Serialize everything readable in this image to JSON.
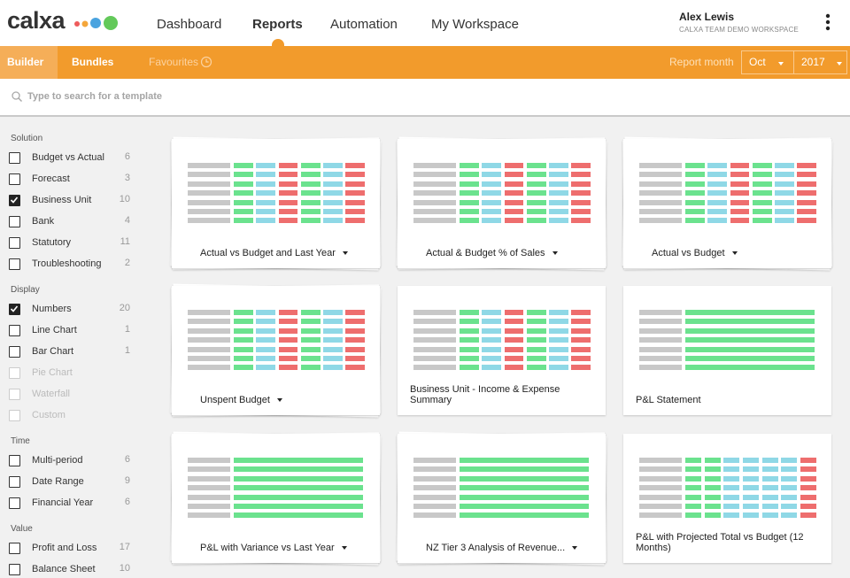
{
  "header": {
    "logo": "calxa",
    "nav": [
      {
        "label": "Dashboard",
        "active": false
      },
      {
        "label": "Reports",
        "active": true
      },
      {
        "label": "Automation",
        "active": false
      },
      {
        "label": "My Workspace",
        "active": false
      }
    ],
    "user": {
      "name": "Alex Lewis",
      "workspace": "CALXA TEAM DEMO WORKSPACE"
    }
  },
  "toolbar": {
    "tabs": [
      {
        "label": "Builder",
        "active": true,
        "faded": false
      },
      {
        "label": "Bundles",
        "active": false,
        "faded": false
      },
      {
        "label": "Favourites",
        "active": false,
        "faded": true
      }
    ],
    "report_month_label": "Report month",
    "month": "Oct",
    "year": "2017"
  },
  "search": {
    "placeholder": "Type to search for a template"
  },
  "filters": [
    {
      "title": "Solution",
      "items": [
        {
          "label": "Budget vs Actual",
          "count": 6,
          "checked": false,
          "disabled": false
        },
        {
          "label": "Forecast",
          "count": 3,
          "checked": false,
          "disabled": false
        },
        {
          "label": "Business Unit",
          "count": 10,
          "checked": true,
          "disabled": false
        },
        {
          "label": "Bank",
          "count": 4,
          "checked": false,
          "disabled": false
        },
        {
          "label": "Statutory",
          "count": 11,
          "checked": false,
          "disabled": false
        },
        {
          "label": "Troubleshooting",
          "count": 2,
          "checked": false,
          "disabled": false
        }
      ]
    },
    {
      "title": "Display",
      "items": [
        {
          "label": "Numbers",
          "count": 20,
          "checked": true,
          "disabled": false
        },
        {
          "label": "Line Chart",
          "count": 1,
          "checked": false,
          "disabled": false
        },
        {
          "label": "Bar Chart",
          "count": 1,
          "checked": false,
          "disabled": false
        },
        {
          "label": "Pie Chart",
          "count": null,
          "checked": false,
          "disabled": true
        },
        {
          "label": "Waterfall",
          "count": null,
          "checked": false,
          "disabled": true
        },
        {
          "label": "Custom",
          "count": null,
          "checked": false,
          "disabled": true
        }
      ]
    },
    {
      "title": "Time",
      "items": [
        {
          "label": "Multi-period",
          "count": 6,
          "checked": false,
          "disabled": false
        },
        {
          "label": "Date Range",
          "count": 9,
          "checked": false,
          "disabled": false
        },
        {
          "label": "Financial Year",
          "count": 6,
          "checked": false,
          "disabled": false
        }
      ]
    },
    {
      "title": "Value",
      "items": [
        {
          "label": "Profit and Loss",
          "count": 17,
          "checked": false,
          "disabled": false
        },
        {
          "label": "Balance Sheet",
          "count": 10,
          "checked": false,
          "disabled": false
        }
      ]
    }
  ],
  "templates": [
    {
      "title": "Actual vs Budget and Last Year",
      "dropdown": true,
      "stacked": true,
      "columns": [
        "#6be28e",
        "#8fd8e6",
        "#ee6e6e",
        "#6be28e",
        "#8fd8e6",
        "#ee6e6e"
      ]
    },
    {
      "title": "Actual & Budget % of Sales",
      "dropdown": true,
      "stacked": true,
      "columns": [
        "#6be28e",
        "#8fd8e6",
        "#ee6e6e",
        "#6be28e",
        "#8fd8e6",
        "#ee6e6e"
      ]
    },
    {
      "title": "Actual vs Budget",
      "dropdown": true,
      "stacked": true,
      "columns": [
        "#6be28e",
        "#8fd8e6",
        "#ee6e6e",
        "#6be28e",
        "#8fd8e6",
        "#ee6e6e"
      ]
    },
    {
      "title": "Unspent Budget",
      "dropdown": true,
      "stacked": true,
      "columns": [
        "#6be28e",
        "#8fd8e6",
        "#ee6e6e",
        "#6be28e",
        "#8fd8e6",
        "#ee6e6e"
      ]
    },
    {
      "title": "Business Unit - Income & Expense Summary",
      "dropdown": false,
      "stacked": false,
      "columns": [
        "#6be28e",
        "#8fd8e6",
        "#ee6e6e",
        "#6be28e",
        "#8fd8e6",
        "#ee6e6e"
      ]
    },
    {
      "title": "P&L Statement",
      "dropdown": false,
      "stacked": false,
      "columns": [
        "#6be28e"
      ]
    },
    {
      "title": "P&L with Variance vs Last Year",
      "dropdown": true,
      "stacked": true,
      "columns": [
        "#6be28e"
      ]
    },
    {
      "title": "NZ Tier 3 Analysis of Revenue...",
      "dropdown": true,
      "stacked": true,
      "columns": [
        "#6be28e"
      ]
    },
    {
      "title": "P&L with Projected Total vs Budget (12 Months)",
      "dropdown": false,
      "stacked": false,
      "columns": [
        "#6be28e",
        "#6be28e",
        "#8fd8e6",
        "#8fd8e6",
        "#8fd8e6",
        "#8fd8e6",
        "#ee6e6e"
      ]
    }
  ]
}
